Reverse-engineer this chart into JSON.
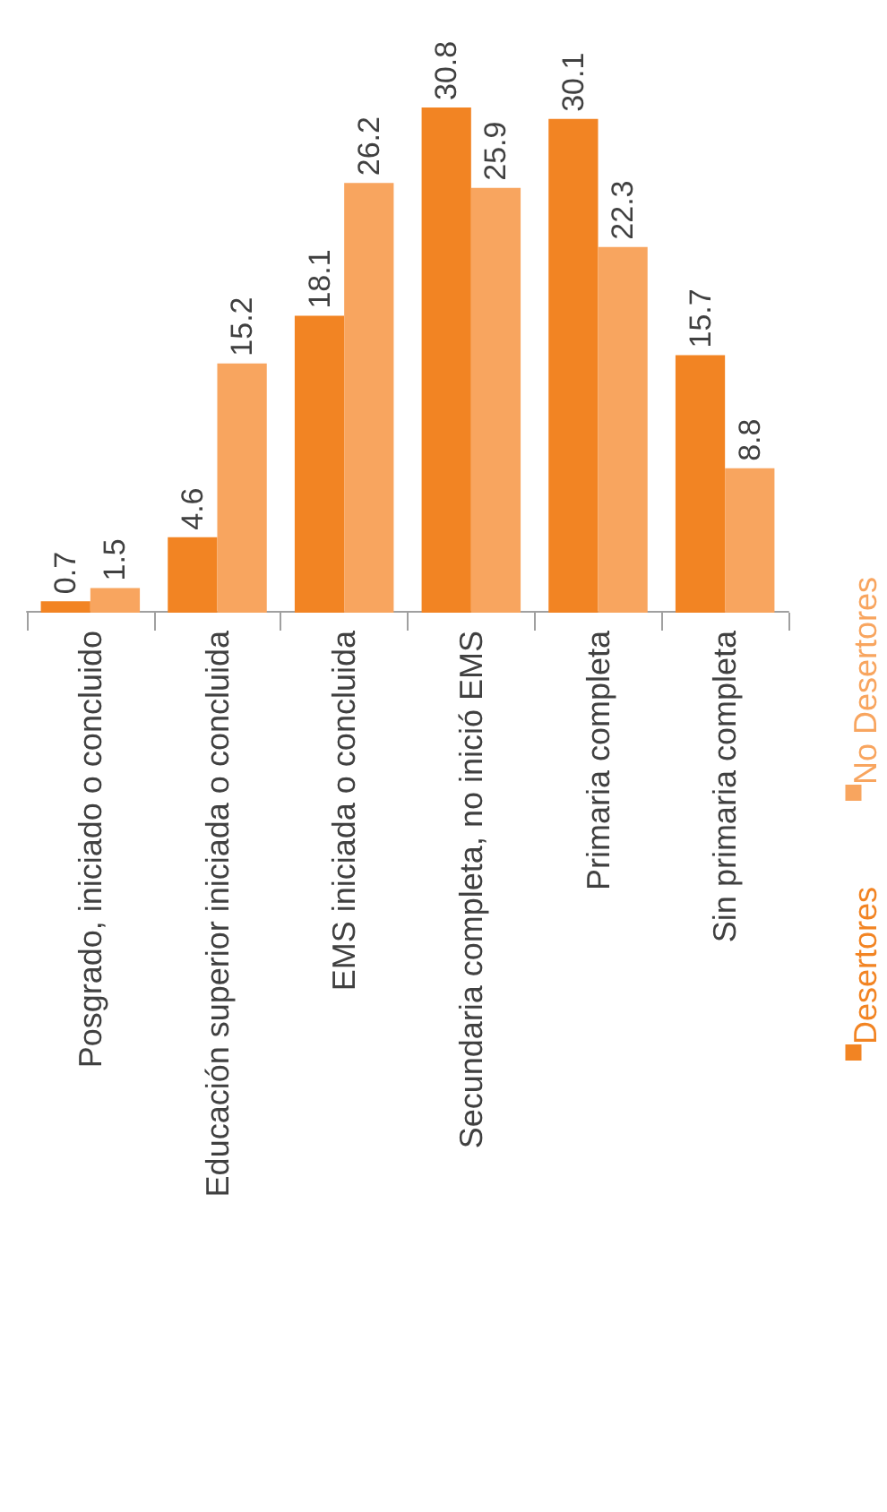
{
  "chart_data": {
    "type": "bar",
    "categories": [
      "Posgrado, iniciado o concluido",
      "Educación superior iniciada o concluida",
      "EMS iniciada o concluida",
      "Secundaria completa, no inició EMS",
      "Primaria completa",
      "Sin primaria completa"
    ],
    "series": [
      {
        "name": "Desertores",
        "color": "#f28423",
        "values": [
          0.7,
          4.6,
          18.1,
          30.8,
          30.1,
          15.7
        ]
      },
      {
        "name": "No Desertores",
        "color": "#f8a55f",
        "values": [
          1.5,
          15.2,
          26.2,
          25.9,
          22.3,
          8.8
        ]
      }
    ],
    "data_labels": true,
    "legend": "bottom right",
    "grid": false
  }
}
